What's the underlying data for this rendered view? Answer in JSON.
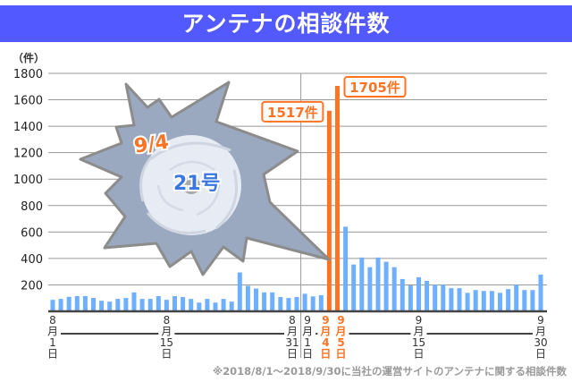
{
  "title": "アンテナの相談件数",
  "footnote": "※2018/8/1〜2018/9/30に当社の運営サイトのアンテナに関する相談件数",
  "colors": {
    "title_bg": "#5259ff",
    "bar": "#6eb0ff",
    "highlight": "#ff7324",
    "storm": "#9aa9bf",
    "storm_text": "#3a78e0"
  },
  "storm_badge": {
    "date": "9/4",
    "name": "21号",
    "icon": "typhoon-icon"
  },
  "chart_data": {
    "type": "bar",
    "ylabel": "（件）",
    "ylim": [
      0,
      1800
    ],
    "yticks": [
      200,
      400,
      600,
      800,
      1000,
      1200,
      1400,
      1600,
      1800
    ],
    "grid": true,
    "dates": [
      "8/1",
      "8/2",
      "8/3",
      "8/4",
      "8/5",
      "8/6",
      "8/7",
      "8/8",
      "8/9",
      "8/10",
      "8/11",
      "8/12",
      "8/13",
      "8/14",
      "8/15",
      "8/16",
      "8/17",
      "8/18",
      "8/19",
      "8/20",
      "8/21",
      "8/22",
      "8/23",
      "8/24",
      "8/25",
      "8/26",
      "8/27",
      "8/28",
      "8/29",
      "8/30",
      "8/31",
      "9/1",
      "9/2",
      "9/3",
      "9/4",
      "9/5",
      "9/6",
      "9/7",
      "9/8",
      "9/9",
      "9/10",
      "9/11",
      "9/12",
      "9/13",
      "9/14",
      "9/15",
      "9/16",
      "9/17",
      "9/18",
      "9/19",
      "9/20",
      "9/21",
      "9/22",
      "9/23",
      "9/24",
      "9/25",
      "9/26",
      "9/27",
      "9/28",
      "9/29",
      "9/30"
    ],
    "values": [
      87,
      94,
      110,
      115,
      115,
      101,
      80,
      73,
      94,
      101,
      143,
      94,
      94,
      115,
      87,
      115,
      108,
      94,
      66,
      94,
      66,
      94,
      73,
      294,
      193,
      172,
      143,
      143,
      108,
      101,
      108,
      133,
      113,
      122,
      1517,
      1705,
      640,
      354,
      407,
      334,
      407,
      375,
      334,
      244,
      196,
      258,
      230,
      202,
      202,
      175,
      175,
      140,
      161,
      154,
      154,
      140,
      168,
      202,
      161,
      161,
      278
    ],
    "highlighted": [
      "9/4",
      "9/5"
    ],
    "data_labels": [
      {
        "date": "9/4",
        "text": "1517件"
      },
      {
        "date": "9/5",
        "text": "1705件"
      }
    ],
    "xtick_labels": [
      {
        "date": "8/1",
        "month": "8",
        "m": "月",
        "day": "1",
        "d": "日"
      },
      {
        "date": "8/15",
        "month": "8",
        "m": "月",
        "day": "15",
        "d": "日"
      },
      {
        "date": "8/31",
        "month": "8",
        "m": "月",
        "day": "31",
        "d": "日"
      },
      {
        "date": "9/1",
        "month": "9",
        "m": "月",
        "day": "1",
        "d": "日"
      },
      {
        "date": "9/4",
        "month": "9",
        "m": "月",
        "day": "4",
        "d": "日"
      },
      {
        "date": "9/5",
        "month": "9",
        "m": "月",
        "day": "5",
        "d": "日"
      },
      {
        "date": "9/15",
        "month": "9",
        "m": "月",
        "day": "15",
        "d": "日"
      },
      {
        "date": "9/30",
        "month": "9",
        "m": "月",
        "day": "30",
        "d": "日"
      }
    ]
  }
}
